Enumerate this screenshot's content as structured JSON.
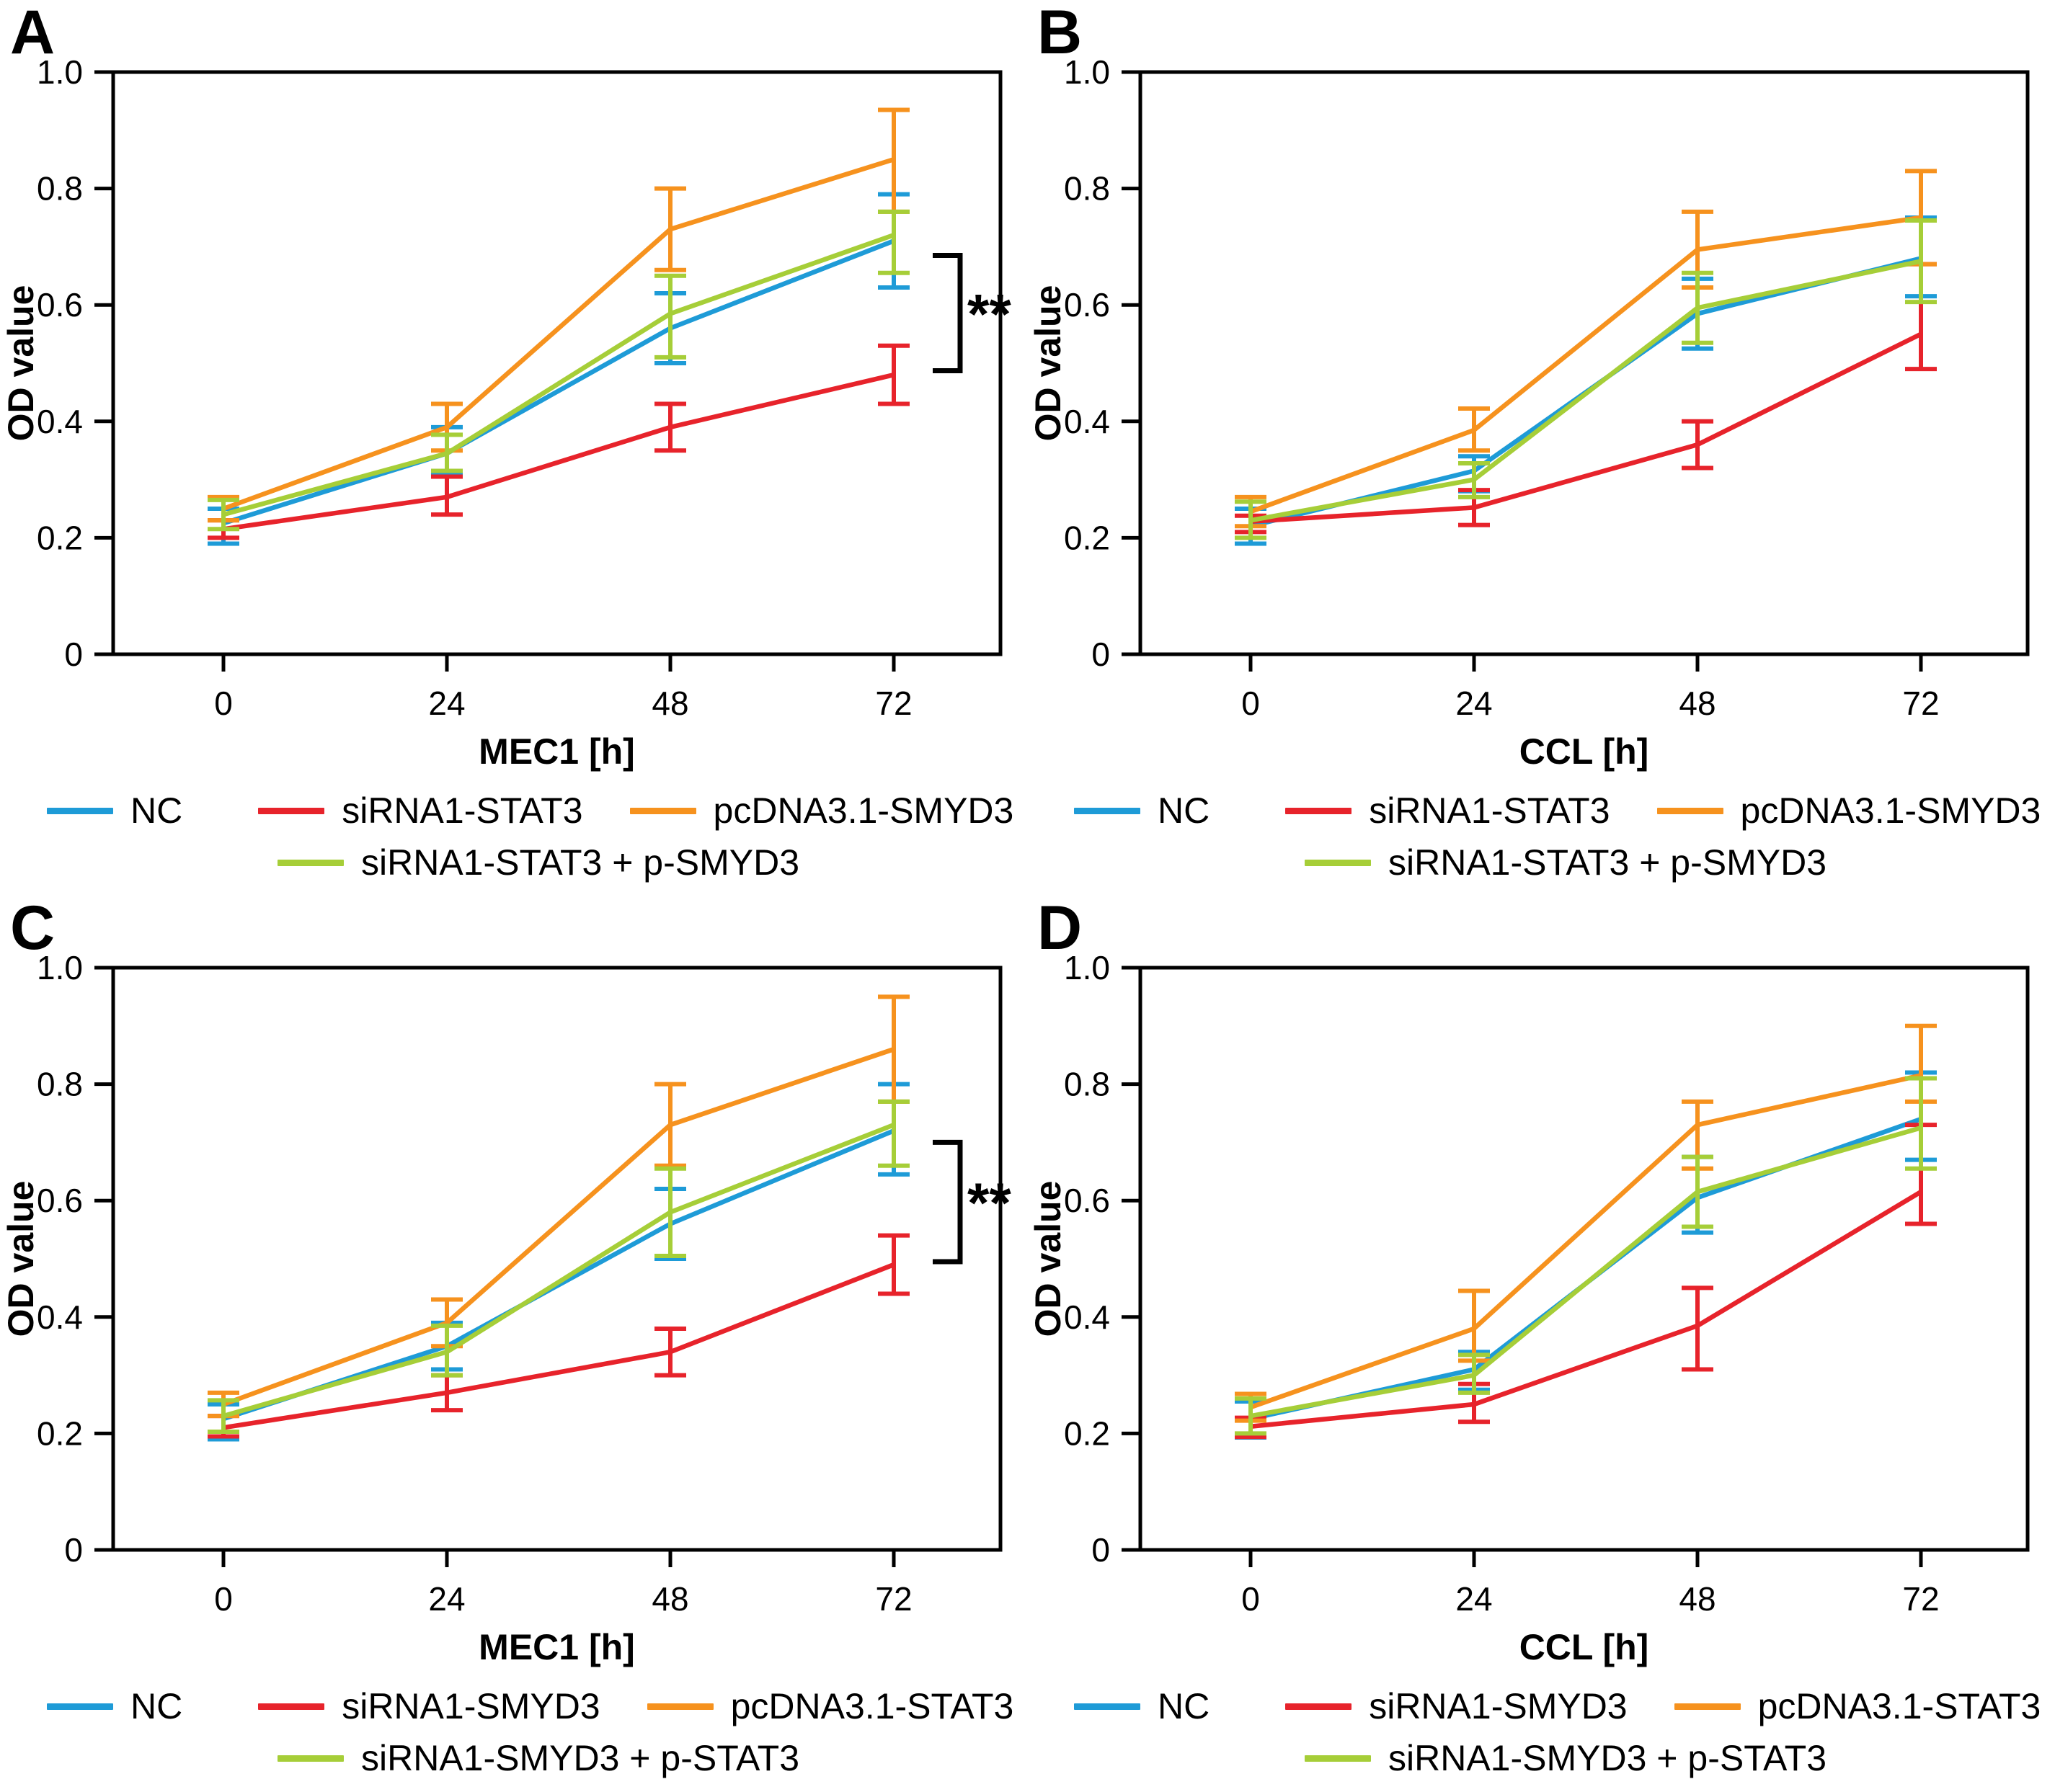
{
  "chart_data": [
    {
      "panel": "A",
      "type": "line",
      "xlabel": "MEC1 [h]",
      "ylabel": "OD value",
      "x": [
        0,
        24,
        48,
        72
      ],
      "x_tick_labels": [
        "0",
        "24",
        "48",
        "72"
      ],
      "y_ticks": [
        1.0,
        0.8,
        0.6,
        0.4,
        0.2,
        0
      ],
      "y_tick_labels": [
        "1.0",
        "0.8",
        "0.6",
        "0.4",
        "0.2",
        "0"
      ],
      "ylim": [
        0,
        1
      ],
      "grid": false,
      "legend_position": "bottom",
      "series": [
        {
          "name": "NC",
          "color": "#1e9bd7",
          "values": [
            0.225,
            0.345,
            0.56,
            0.71
          ],
          "err_lo": [
            0.035,
            0.035,
            0.06,
            0.08
          ],
          "err_hi": [
            0.025,
            0.045,
            0.06,
            0.08
          ]
        },
        {
          "name": "siRNA1-STAT3",
          "color": "#e7232b",
          "values": [
            0.215,
            0.27,
            0.39,
            0.48
          ],
          "err_lo": [
            0.015,
            0.03,
            0.04,
            0.05
          ],
          "err_hi": [
            0.015,
            0.035,
            0.04,
            0.05
          ]
        },
        {
          "name": "pcDNA3.1-SMYD3",
          "color": "#f6921e",
          "values": [
            0.25,
            0.39,
            0.73,
            0.85
          ],
          "err_lo": [
            0.02,
            0.04,
            0.07,
            0.09
          ],
          "err_hi": [
            0.02,
            0.04,
            0.07,
            0.085
          ]
        },
        {
          "name": "siRNA1-STAT3 + p-SMYD3",
          "color": "#a6ce38",
          "values": [
            0.24,
            0.345,
            0.585,
            0.72
          ],
          "err_lo": [
            0.025,
            0.03,
            0.075,
            0.065
          ],
          "err_hi": [
            0.025,
            0.032,
            0.065,
            0.04
          ]
        }
      ],
      "significance": {
        "text": "**",
        "y_top": 0.685,
        "y_bottom": 0.487
      }
    },
    {
      "panel": "B",
      "type": "line",
      "xlabel": "CCL [h]",
      "ylabel": "OD value",
      "x": [
        0,
        24,
        48,
        72
      ],
      "x_tick_labels": [
        "0",
        "24",
        "48",
        "72"
      ],
      "y_ticks": [
        1.0,
        0.8,
        0.6,
        0.4,
        0.2,
        0
      ],
      "y_tick_labels": [
        "1.0",
        "0.8",
        "0.6",
        "0.4",
        "0.2",
        "0"
      ],
      "ylim": [
        0,
        1
      ],
      "grid": false,
      "legend_position": "bottom",
      "series": [
        {
          "name": "NC",
          "color": "#1e9bd7",
          "values": [
            0.22,
            0.315,
            0.585,
            0.68
          ],
          "err_lo": [
            0.03,
            0.035,
            0.06,
            0.065
          ],
          "err_hi": [
            0.03,
            0.025,
            0.06,
            0.07
          ]
        },
        {
          "name": "siRNA1-STAT3",
          "color": "#e7232b",
          "values": [
            0.228,
            0.252,
            0.36,
            0.55
          ],
          "err_lo": [
            0.018,
            0.03,
            0.04,
            0.06
          ],
          "err_hi": [
            0.01,
            0.03,
            0.04,
            0.12
          ]
        },
        {
          "name": "pcDNA3.1-SMYD3",
          "color": "#f6921e",
          "values": [
            0.245,
            0.385,
            0.695,
            0.75
          ],
          "err_lo": [
            0.025,
            0.035,
            0.065,
            0.08
          ],
          "err_hi": [
            0.025,
            0.037,
            0.065,
            0.08
          ]
        },
        {
          "name": "siRNA1-STAT3 + p-SMYD3",
          "color": "#a6ce38",
          "values": [
            0.23,
            0.3,
            0.595,
            0.675
          ],
          "err_lo": [
            0.03,
            0.03,
            0.06,
            0.07
          ],
          "err_hi": [
            0.032,
            0.028,
            0.06,
            0.07
          ]
        }
      ],
      "significance": null
    },
    {
      "panel": "C",
      "type": "line",
      "xlabel": "MEC1 [h]",
      "ylabel": "OD value",
      "x": [
        0,
        24,
        48,
        72
      ],
      "x_tick_labels": [
        "0",
        "24",
        "48",
        "72"
      ],
      "y_ticks": [
        1.0,
        0.8,
        0.6,
        0.4,
        0.2,
        0
      ],
      "y_tick_labels": [
        "1.0",
        "0.8",
        "0.6",
        "0.4",
        "0.2",
        "0"
      ],
      "ylim": [
        0,
        1
      ],
      "grid": false,
      "legend_position": "bottom",
      "series": [
        {
          "name": "NC",
          "color": "#1e9bd7",
          "values": [
            0.225,
            0.35,
            0.56,
            0.72
          ],
          "err_lo": [
            0.035,
            0.04,
            0.06,
            0.075
          ],
          "err_hi": [
            0.025,
            0.04,
            0.06,
            0.08
          ]
        },
        {
          "name": "siRNA1-SMYD3",
          "color": "#e7232b",
          "values": [
            0.21,
            0.27,
            0.34,
            0.49
          ],
          "err_lo": [
            0.015,
            0.03,
            0.04,
            0.05
          ],
          "err_hi": [
            0.02,
            0.03,
            0.04,
            0.05
          ]
        },
        {
          "name": "pcDNA3.1-STAT3",
          "color": "#f6921e",
          "values": [
            0.25,
            0.39,
            0.73,
            0.86
          ],
          "err_lo": [
            0.02,
            0.04,
            0.07,
            0.09
          ],
          "err_hi": [
            0.02,
            0.04,
            0.07,
            0.09
          ]
        },
        {
          "name": "siRNA1-SMYD3 + p-STAT3",
          "color": "#a6ce38",
          "values": [
            0.23,
            0.34,
            0.58,
            0.73
          ],
          "err_lo": [
            0.027,
            0.04,
            0.075,
            0.07
          ],
          "err_hi": [
            0.027,
            0.045,
            0.075,
            0.04
          ]
        }
      ],
      "significance": {
        "text": "**",
        "y_top": 0.7,
        "y_bottom": 0.495
      }
    },
    {
      "panel": "D",
      "type": "line",
      "xlabel": "CCL [h]",
      "ylabel": "OD value",
      "x": [
        0,
        24,
        48,
        72
      ],
      "x_tick_labels": [
        "0",
        "24",
        "48",
        "72"
      ],
      "y_ticks": [
        1.0,
        0.8,
        0.6,
        0.4,
        0.2,
        0
      ],
      "y_tick_labels": [
        "1.0",
        "0.8",
        "0.6",
        "0.4",
        "0.2",
        "0"
      ],
      "ylim": [
        0,
        1
      ],
      "grid": false,
      "legend_position": "bottom",
      "series": [
        {
          "name": "NC",
          "color": "#1e9bd7",
          "values": [
            0.225,
            0.31,
            0.605,
            0.74
          ],
          "err_lo": [
            0.032,
            0.035,
            0.06,
            0.07
          ],
          "err_hi": [
            0.03,
            0.03,
            0.07,
            0.08
          ]
        },
        {
          "name": "siRNA1-SMYD3",
          "color": "#e7232b",
          "values": [
            0.212,
            0.25,
            0.385,
            0.615
          ],
          "err_lo": [
            0.018,
            0.03,
            0.075,
            0.055
          ],
          "err_hi": [
            0.015,
            0.035,
            0.065,
            0.115
          ]
        },
        {
          "name": "pcDNA3.1-STAT3",
          "color": "#f6921e",
          "values": [
            0.245,
            0.38,
            0.73,
            0.815
          ],
          "err_lo": [
            0.023,
            0.055,
            0.075,
            0.045
          ],
          "err_hi": [
            0.023,
            0.065,
            0.04,
            0.085
          ]
        },
        {
          "name": "siRNA1-SMYD3 + p-STAT3",
          "color": "#a6ce38",
          "values": [
            0.23,
            0.3,
            0.615,
            0.725
          ],
          "err_lo": [
            0.03,
            0.03,
            0.06,
            0.07
          ],
          "err_hi": [
            0.03,
            0.035,
            0.06,
            0.085
          ]
        }
      ],
      "significance": null
    }
  ]
}
